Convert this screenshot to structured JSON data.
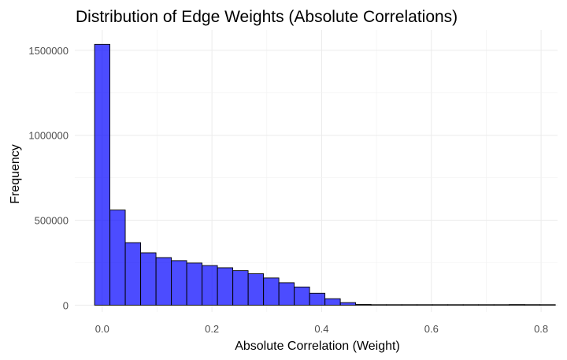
{
  "chart_data": {
    "type": "bar",
    "title": "Distribution of Edge Weights (Absolute Correlations)",
    "xlabel": "Absolute Correlation (Weight)",
    "ylabel": "Frequency",
    "xlim": [
      -0.05,
      0.83
    ],
    "ylim": [
      -40000,
      1620000
    ],
    "x_ticks": [
      0.0,
      0.2,
      0.4,
      0.6,
      0.8
    ],
    "x_tick_labels": [
      "0.0",
      "0.2",
      "0.4",
      "0.6",
      "0.8"
    ],
    "y_ticks": [
      0,
      500000,
      1000000,
      1500000
    ],
    "y_tick_labels": [
      "0",
      "500000",
      "1000000",
      "1500000"
    ],
    "grid": true,
    "bar_color": "#0000ff",
    "bar_opacity": 0.7,
    "bar_outline_color": "#000000",
    "bin_width": 0.0279,
    "bins": [
      {
        "x": 0.0,
        "count": 1535000
      },
      {
        "x": 0.028,
        "count": 560000
      },
      {
        "x": 0.056,
        "count": 368000
      },
      {
        "x": 0.084,
        "count": 308000
      },
      {
        "x": 0.112,
        "count": 280000
      },
      {
        "x": 0.14,
        "count": 262000
      },
      {
        "x": 0.168,
        "count": 248000
      },
      {
        "x": 0.196,
        "count": 233000
      },
      {
        "x": 0.224,
        "count": 220000
      },
      {
        "x": 0.252,
        "count": 203000
      },
      {
        "x": 0.28,
        "count": 185000
      },
      {
        "x": 0.308,
        "count": 160000
      },
      {
        "x": 0.336,
        "count": 132000
      },
      {
        "x": 0.364,
        "count": 107000
      },
      {
        "x": 0.392,
        "count": 70000
      },
      {
        "x": 0.42,
        "count": 38000
      },
      {
        "x": 0.448,
        "count": 15000
      },
      {
        "x": 0.476,
        "count": 4000
      },
      {
        "x": 0.504,
        "count": 1000
      },
      {
        "x": 0.532,
        "count": 300
      },
      {
        "x": 0.56,
        "count": 100
      },
      {
        "x": 0.588,
        "count": 50
      },
      {
        "x": 0.616,
        "count": 20
      },
      {
        "x": 0.644,
        "count": 10
      },
      {
        "x": 0.672,
        "count": 10
      },
      {
        "x": 0.7,
        "count": 10
      },
      {
        "x": 0.728,
        "count": 10
      },
      {
        "x": 0.756,
        "count": 3500
      },
      {
        "x": 0.784,
        "count": 3000
      },
      {
        "x": 0.812,
        "count": 50
      }
    ]
  }
}
